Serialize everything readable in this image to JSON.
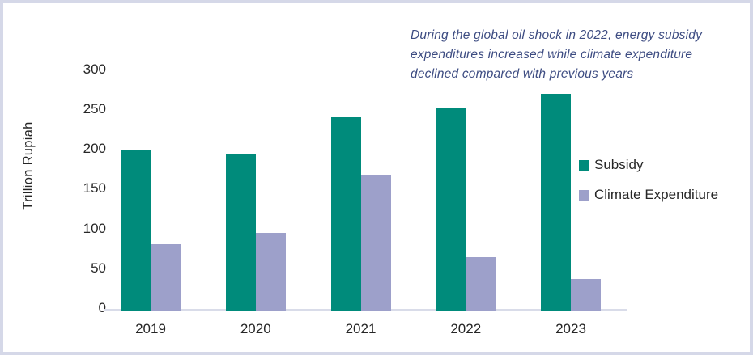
{
  "annotation": {
    "lines": [
      "During the global oil shock in 2022, energy subsidy",
      "expenditures increased while climate expenditure",
      "declined compared with previous years"
    ]
  },
  "chart_data": {
    "type": "bar",
    "categories": [
      "2019",
      "2020",
      "2021",
      "2022",
      "2023"
    ],
    "series": [
      {
        "name": "Subsidy",
        "color": "#008B7B",
        "values": [
          201,
          197,
          243,
          255,
          272
        ]
      },
      {
        "name": "Climate Expenditure",
        "color": "#9DA0CA",
        "values": [
          83,
          97,
          170,
          67,
          40
        ]
      }
    ],
    "title": "",
    "xlabel": "",
    "ylabel": "Trillion Rupiah",
    "yticks": [
      0,
      50,
      100,
      150,
      200,
      250,
      300
    ],
    "ylim": [
      0,
      300
    ],
    "grid": false,
    "legend_position": "right",
    "annotation": "During the global oil shock in 2022, energy subsidy expenditures increased while climate expenditure declined compared with previous years"
  },
  "colors": {
    "frame_border": "#D5D8E8",
    "axis_line": "#D9DCE9",
    "annotation_text": "#3D4C82",
    "label_text": "#262626"
  }
}
